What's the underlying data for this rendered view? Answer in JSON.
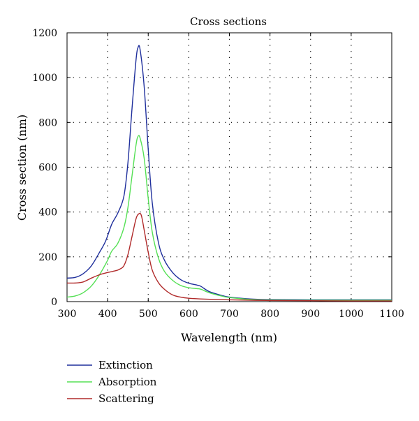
{
  "chart_data": {
    "type": "line",
    "title": "Cross sections",
    "xlabel": "Wavelength (nm)",
    "ylabel": "Cross section (nm)",
    "xlim": [
      300,
      1100
    ],
    "ylim": [
      0,
      1200
    ],
    "x_ticks": [
      300,
      400,
      500,
      600,
      700,
      800,
      900,
      1000,
      1100
    ],
    "y_ticks": [
      0,
      200,
      400,
      600,
      800,
      1000,
      1200
    ],
    "x_tick_labels": [
      "300",
      "400",
      "500",
      "600",
      "700",
      "800",
      "900",
      "1000",
      "1100"
    ],
    "y_tick_labels": [
      "0",
      "200",
      "400",
      "600",
      "800",
      "1000",
      "1200"
    ],
    "grid": true,
    "legend_position": "bottom-left",
    "series": [
      {
        "name": "Extinction",
        "color": "#1f2f9c",
        "points": [
          [
            300,
            105
          ],
          [
            320,
            108
          ],
          [
            340,
            125
          ],
          [
            360,
            160
          ],
          [
            380,
            220
          ],
          [
            395,
            270
          ],
          [
            410,
            345
          ],
          [
            425,
            395
          ],
          [
            440,
            470
          ],
          [
            450,
            620
          ],
          [
            460,
            860
          ],
          [
            470,
            1080
          ],
          [
            475,
            1135
          ],
          [
            480,
            1125
          ],
          [
            490,
            960
          ],
          [
            500,
            680
          ],
          [
            510,
            440
          ],
          [
            525,
            265
          ],
          [
            540,
            185
          ],
          [
            560,
            130
          ],
          [
            580,
            98
          ],
          [
            600,
            82
          ],
          [
            620,
            74
          ],
          [
            630,
            68
          ],
          [
            650,
            45
          ],
          [
            680,
            28
          ],
          [
            700,
            20
          ],
          [
            750,
            12
          ],
          [
            800,
            9
          ],
          [
            900,
            8
          ],
          [
            1000,
            8
          ],
          [
            1100,
            8
          ]
        ]
      },
      {
        "name": "Absorption",
        "color": "#55e055",
        "points": [
          [
            300,
            20
          ],
          [
            320,
            25
          ],
          [
            340,
            40
          ],
          [
            360,
            70
          ],
          [
            380,
            120
          ],
          [
            400,
            185
          ],
          [
            410,
            225
          ],
          [
            425,
            260
          ],
          [
            440,
            330
          ],
          [
            450,
            420
          ],
          [
            460,
            560
          ],
          [
            470,
            700
          ],
          [
            475,
            738
          ],
          [
            480,
            730
          ],
          [
            490,
            640
          ],
          [
            500,
            460
          ],
          [
            510,
            310
          ],
          [
            525,
            195
          ],
          [
            540,
            135
          ],
          [
            560,
            95
          ],
          [
            580,
            72
          ],
          [
            600,
            62
          ],
          [
            620,
            58
          ],
          [
            630,
            55
          ],
          [
            650,
            40
          ],
          [
            680,
            25
          ],
          [
            700,
            18
          ],
          [
            750,
            10
          ],
          [
            800,
            7
          ],
          [
            900,
            6
          ],
          [
            1000,
            6
          ],
          [
            1100,
            6
          ]
        ]
      },
      {
        "name": "Scattering",
        "color": "#b02a2a",
        "points": [
          [
            300,
            83
          ],
          [
            320,
            83
          ],
          [
            340,
            88
          ],
          [
            360,
            105
          ],
          [
            380,
            120
          ],
          [
            400,
            130
          ],
          [
            420,
            138
          ],
          [
            430,
            145
          ],
          [
            440,
            160
          ],
          [
            450,
            210
          ],
          [
            460,
            290
          ],
          [
            470,
            370
          ],
          [
            477,
            392
          ],
          [
            483,
            385
          ],
          [
            490,
            320
          ],
          [
            500,
            220
          ],
          [
            510,
            140
          ],
          [
            525,
            85
          ],
          [
            540,
            55
          ],
          [
            560,
            30
          ],
          [
            580,
            20
          ],
          [
            600,
            15
          ],
          [
            640,
            11
          ],
          [
            700,
            8
          ],
          [
            800,
            5
          ],
          [
            900,
            4
          ],
          [
            1000,
            3
          ],
          [
            1100,
            3
          ]
        ]
      }
    ]
  }
}
